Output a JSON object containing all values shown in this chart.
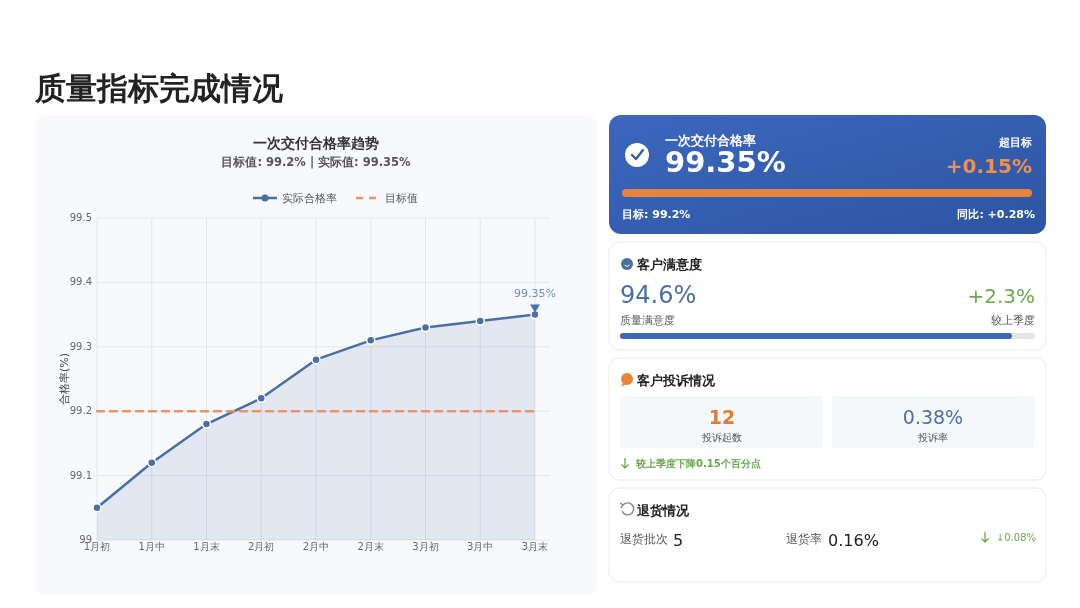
{
  "chart_data": [
    {
      "type": "other",
      "title": "质量指标完成情况"
    },
    {
      "type": "line",
      "title": "一次交付合格率趋势",
      "subtitle": "目标值: 99.2% | 实际值: 99.35%",
      "ylabel": "合格率(%)",
      "categories": [
        "1月初",
        "1月中",
        "1月末",
        "2月初",
        "2月中",
        "2月末",
        "3月初",
        "3月中",
        "3月末"
      ],
      "series": [
        {
          "name": "实际合格率",
          "type": "area",
          "color": "#4a6fa5",
          "marker": "circle",
          "values": [
            99.05,
            99.12,
            99.18,
            99.22,
            99.28,
            99.31,
            99.33,
            99.34,
            99.35
          ]
        },
        {
          "name": "目标值",
          "type": "line",
          "color": "#e8956a",
          "marker": "none",
          "line_style": "dashed",
          "values": [
            99.2,
            99.2,
            99.2,
            99.2,
            99.2,
            99.2,
            99.2,
            99.2,
            99.2
          ]
        }
      ],
      "ylim": [
        99,
        99.5
      ],
      "yticks": [
        99,
        99.1,
        99.2,
        99.3,
        99.4,
        99.5
      ],
      "grid": true,
      "legend": "top",
      "annotations": [
        {
          "text": "99.35%",
          "x": "3月末",
          "y": 99.35
        }
      ]
    },
    {
      "type": "other",
      "title": "一次交付合格率",
      "annotations": [
        "99.35%",
        "超目标",
        "+0.15%",
        "目标: 99.2%",
        "同比: +0.28%"
      ]
    },
    {
      "type": "other",
      "title": "客户满意度",
      "annotations": [
        "94.6%",
        "质量满意度",
        "+2.3%",
        "较上季度"
      ]
    },
    {
      "type": "other",
      "title": "客户投诉情况",
      "annotations": [
        "12",
        "投诉起数",
        "0.38%",
        "投诉率",
        "较上季度下降0.15个百分点"
      ]
    },
    {
      "type": "other",
      "title": "退货情况",
      "annotations": [
        "退货批次",
        "5",
        "退货率",
        "0.16%",
        "↓0.08%"
      ]
    }
  ]
}
